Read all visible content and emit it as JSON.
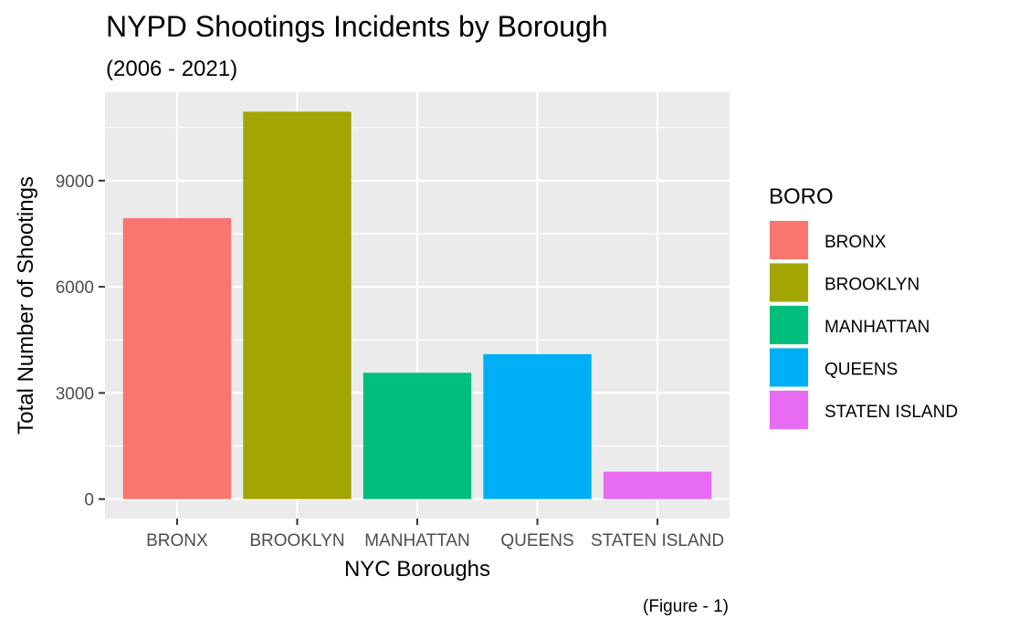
{
  "chart_data": {
    "type": "bar",
    "title": "NYPD Shootings Incidents by Borough",
    "subtitle": "(2006 - 2021)",
    "xlabel": "NYC Boroughs",
    "ylabel": "Total Number of Shootings",
    "caption": "(Figure - 1)",
    "categories": [
      "BRONX",
      "BROOKLYN",
      "MANHATTAN",
      "QUEENS",
      "STATEN ISLAND"
    ],
    "values": [
      7940,
      10950,
      3570,
      4095,
      775
    ],
    "colors": [
      "#F8766D",
      "#A3A500",
      "#00BF7D",
      "#00B0F6",
      "#E76BF3"
    ],
    "ylim": [
      -550,
      11500
    ],
    "yticks": [
      0,
      3000,
      6000,
      9000
    ],
    "grid": true,
    "legend": {
      "title": "BORO",
      "position": "right",
      "entries": [
        "BRONX",
        "BROOKLYN",
        "MANHATTAN",
        "QUEENS",
        "STATEN ISLAND"
      ]
    }
  }
}
